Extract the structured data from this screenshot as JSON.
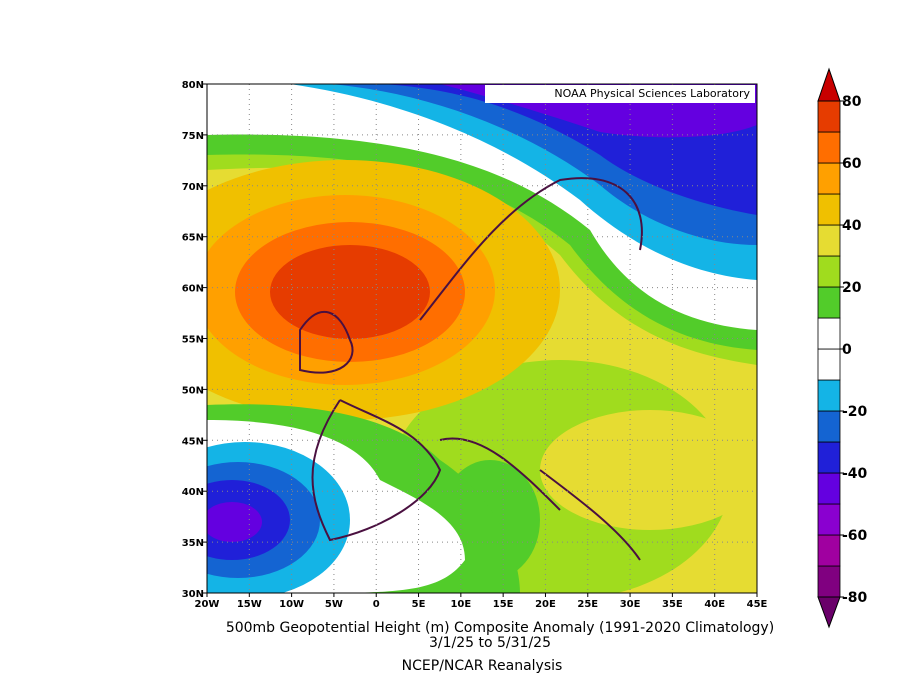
{
  "map": {
    "credit": "NOAA Physical Sciences Laboratory",
    "lat_labels": [
      "80N",
      "75N",
      "70N",
      "65N",
      "60N",
      "55N",
      "50N",
      "45N",
      "40N",
      "35N",
      "30N"
    ],
    "lon_labels": [
      "20W",
      "15W",
      "10W",
      "5W",
      "0",
      "5E",
      "10E",
      "15E",
      "20E",
      "25E",
      "30E",
      "35E",
      "40E",
      "45E"
    ],
    "title": "500mb Geopotential Height (m) Composite Anomaly (1991-2020 Climatology)",
    "subtitle": "3/1/25  to 5/31/25",
    "source": "NCEP/NCAR Reanalysis"
  },
  "colorbar": {
    "lim": [
      -80,
      80
    ],
    "ticks": [
      80,
      60,
      40,
      20,
      0,
      -20,
      -40,
      -60,
      -80
    ],
    "colors": [
      "#800080",
      "#a000a0",
      "#8a00d0",
      "#6400e0",
      "#2020d8",
      "#1464d2",
      "#14b4e6",
      "#ffffff",
      "#ffffff",
      "#52cc2a",
      "#a0dc1e",
      "#e6dc32",
      "#f0c000",
      "#ffa000",
      "#ff6e00",
      "#e63c00"
    ],
    "extend_colors": [
      "#6a006a",
      "#c80000"
    ]
  }
}
